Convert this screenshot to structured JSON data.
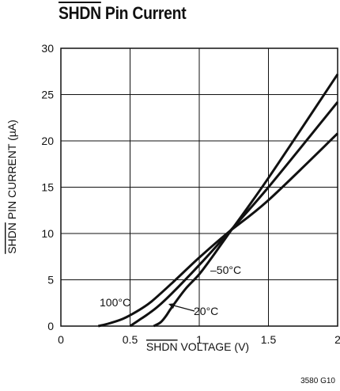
{
  "header": {
    "title_overlined": "SHDN",
    "title_rest": " Pin Current"
  },
  "chart_data": {
    "type": "line",
    "title": "SHDN Pin Current",
    "xlabel_overlined": "SHDN",
    "xlabel_rest": " VOLTAGE (V)",
    "ylabel_overlined": "SHDN",
    "ylabel_rest": " PIN CURRENT (µA)",
    "xlim": [
      0,
      2
    ],
    "ylim": [
      0,
      30
    ],
    "xticks": [
      0,
      0.5,
      1,
      1.5,
      2
    ],
    "xtick_labels": [
      "0",
      "0.5",
      "1",
      "1.5",
      "2"
    ],
    "yticks": [
      0,
      5,
      10,
      15,
      20,
      25,
      30
    ],
    "ytick_labels": [
      "0",
      "5",
      "10",
      "15",
      "20",
      "25",
      "30"
    ],
    "grid": true,
    "series": [
      {
        "name": "100°C",
        "x": [
          0.27,
          0.35,
          0.45,
          0.55,
          0.65,
          0.8,
          1.0,
          1.2,
          1.5,
          2.0
        ],
        "y": [
          0,
          0.3,
          0.8,
          1.6,
          2.6,
          4.6,
          7.4,
          10.0,
          13.6,
          20.8
        ]
      },
      {
        "name": "20°C",
        "x": [
          0.5,
          0.56,
          0.62,
          0.7,
          0.8,
          1.0,
          1.2,
          1.5,
          2.0
        ],
        "y": [
          0,
          0.6,
          1.2,
          2.1,
          3.5,
          6.6,
          9.9,
          15.0,
          24.2
        ]
      },
      {
        "name": "–50°C",
        "x": [
          0.67,
          0.72,
          0.76,
          0.8,
          0.9,
          1.0,
          1.1,
          1.2,
          1.5,
          2.0
        ],
        "y": [
          0,
          0.4,
          1.1,
          2.0,
          4.0,
          5.6,
          7.6,
          9.7,
          16.0,
          27.2
        ]
      }
    ],
    "annotations": [
      {
        "text": "100°C"
      },
      {
        "text": "20°C"
      },
      {
        "text": "–50°C"
      }
    ],
    "figure_code": "3580 G10"
  }
}
